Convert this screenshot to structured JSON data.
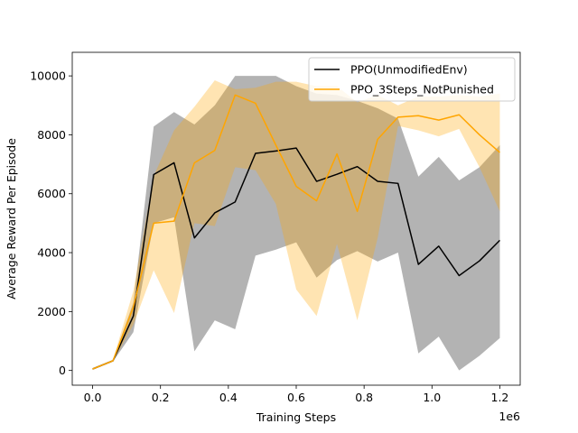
{
  "chart_data": {
    "type": "line",
    "xlabel": "Training Steps",
    "ylabel": "Average Reward Per Episode",
    "x_offset_label": "1e6",
    "xlim": [
      -0.06,
      1.26
    ],
    "ylim": [
      -500,
      10800
    ],
    "xticks": [
      0.0,
      0.2,
      0.4,
      0.6,
      0.8,
      1.0,
      1.2
    ],
    "xtick_labels": [
      "0.0",
      "0.2",
      "0.4",
      "0.6",
      "0.8",
      "1.0",
      "1.2"
    ],
    "yticks": [
      0,
      2000,
      4000,
      6000,
      8000,
      10000
    ],
    "ytick_labels": [
      "0",
      "2000",
      "4000",
      "6000",
      "8000",
      "10000"
    ],
    "grid": false,
    "legend_position": "top-right",
    "x": [
      0.0,
      0.06,
      0.12,
      0.18,
      0.24,
      0.3,
      0.36,
      0.42,
      0.48,
      0.54,
      0.6,
      0.66,
      0.72,
      0.78,
      0.84,
      0.9,
      0.96,
      1.02,
      1.08,
      1.14,
      1.2
    ],
    "series": [
      {
        "name": "PPO(UnmodifiedEnv)",
        "color": "#000000",
        "band_color": "#808080",
        "values": [
          50,
          330,
          1850,
          6650,
          7050,
          4500,
          5350,
          5720,
          7370,
          7450,
          7550,
          6420,
          6660,
          6920,
          6420,
          6350,
          3600,
          4220,
          3220,
          3720,
          4420
        ],
        "lower": [
          20,
          300,
          1300,
          5000,
          5200,
          650,
          1700,
          1400,
          3900,
          4100,
          4350,
          3150,
          3750,
          4050,
          3700,
          4000,
          580,
          1150,
          0,
          500,
          1100
        ],
        "upper": [
          80,
          360,
          2300,
          8280,
          8770,
          8350,
          9000,
          10000,
          10000,
          10000,
          9650,
          9400,
          9350,
          9150,
          8900,
          8550,
          6580,
          7250,
          6450,
          6900,
          7650
        ]
      },
      {
        "name": "PPO_3Steps_NotPunished",
        "color": "#ffa500",
        "band_color": "#ffa500",
        "values": [
          50,
          330,
          2150,
          5000,
          5070,
          7050,
          7470,
          9350,
          9070,
          7650,
          6250,
          5760,
          7350,
          5400,
          7850,
          8600,
          8650,
          8500,
          8680,
          8000,
          7400
        ],
        "lower": [
          20,
          300,
          1550,
          3400,
          1950,
          5000,
          4900,
          6900,
          6800,
          5650,
          2750,
          1850,
          4300,
          1700,
          4500,
          8300,
          8150,
          7950,
          8200,
          6900,
          5400
        ],
        "upper": [
          80,
          360,
          2700,
          6600,
          8150,
          8950,
          9850,
          9550,
          9600,
          9800,
          9800,
          9650,
          9650,
          9100,
          9350,
          9000,
          9300,
          9300,
          9350,
          9300,
          9400
        ]
      }
    ]
  }
}
